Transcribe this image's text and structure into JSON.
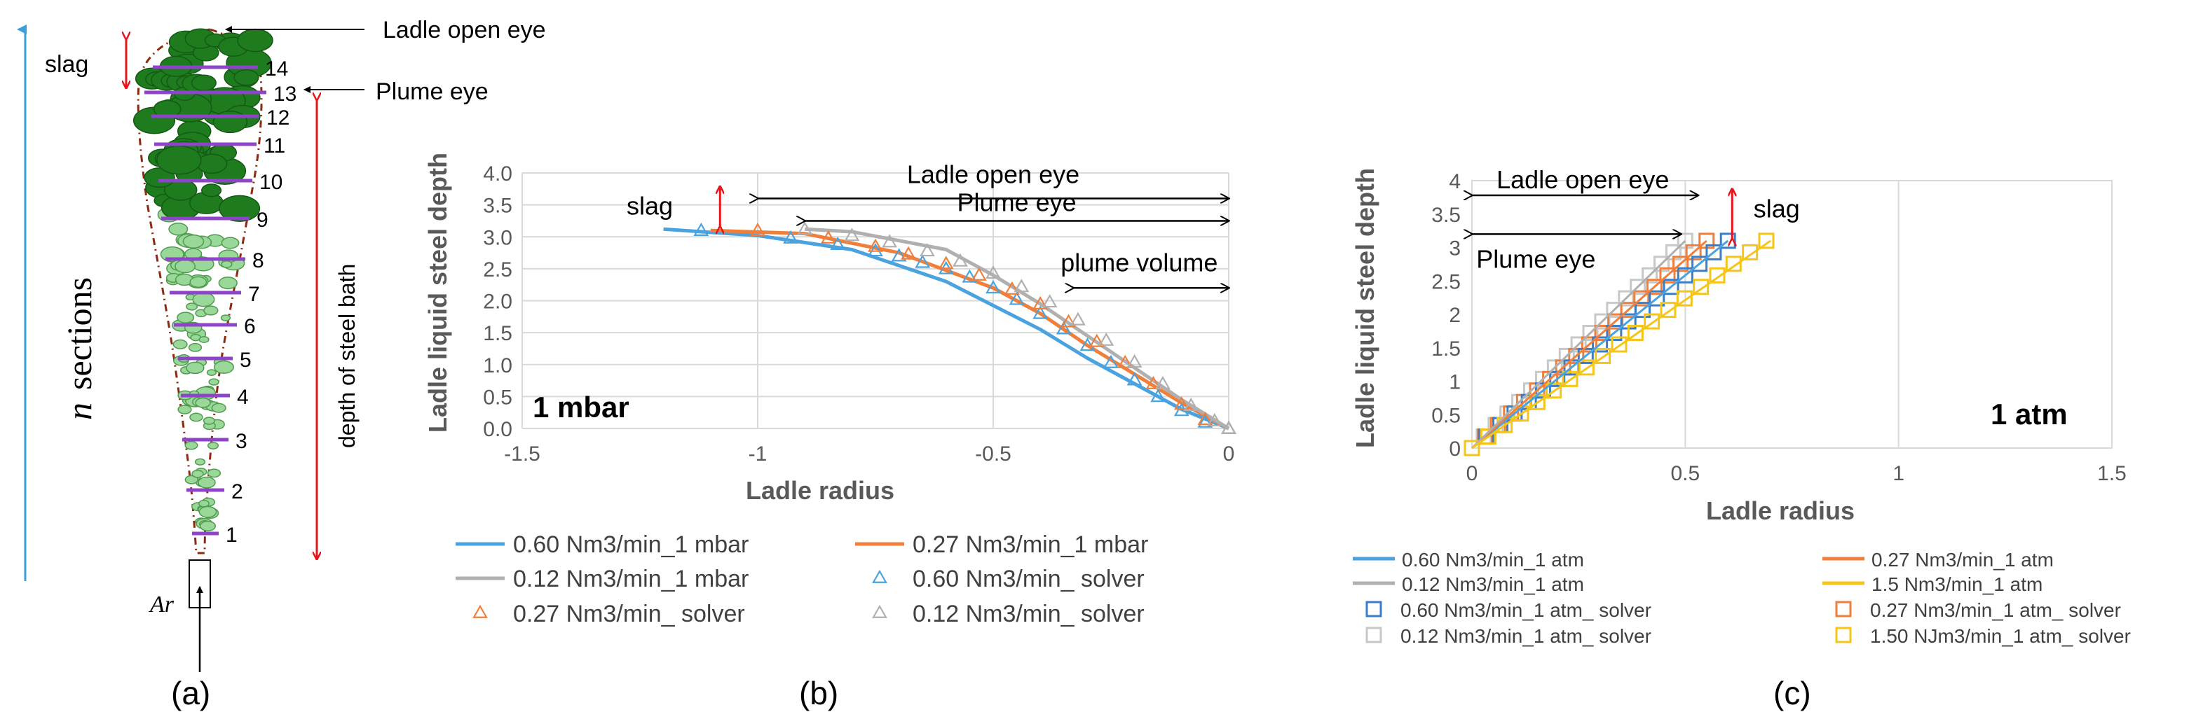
{
  "panel_a": {
    "label": "(a)",
    "title_open_eye": "Ladle open eye",
    "title_plume_eye": "Plume eye",
    "slag": "slag",
    "n_symbol": "n",
    "sections": "sections",
    "depth": "depth of steel bath",
    "ar": "Ar",
    "section_numbers": [
      "1",
      "2",
      "3",
      "4",
      "5",
      "6",
      "7",
      "8",
      "9",
      "10",
      "11",
      "12",
      "13",
      "14"
    ]
  },
  "chart_data": [
    {
      "type": "line",
      "panel_label": "(b)",
      "condition": "1 mbar",
      "xlabel": "Ladle radius",
      "ylabel": "Ladle liquid steel depth",
      "xlim": [
        -1.5,
        0
      ],
      "ylim": [
        0,
        4.0
      ],
      "x_ticks": [
        "-1.5",
        "-1",
        "-0.5",
        "0"
      ],
      "y_ticks": [
        "0.0",
        "0.5",
        "1.0",
        "1.5",
        "2.0",
        "2.5",
        "3.0",
        "3.5",
        "4.0"
      ],
      "annotations": {
        "open_eye": "Ladle open eye",
        "plume_eye": "Plume eye",
        "plume_volume": "plume volume",
        "slag": "slag"
      },
      "series": [
        {
          "name": "0.60 Nm3/min_1 mbar",
          "style": "line",
          "color": "#4aa3df",
          "x": [
            -1.2,
            -1.0,
            -0.8,
            -0.6,
            -0.4,
            -0.3,
            -0.2,
            -0.1,
            0
          ],
          "y": [
            3.12,
            3.02,
            2.8,
            2.3,
            1.55,
            1.1,
            0.7,
            0.3,
            0
          ]
        },
        {
          "name": "0.27 Nm3/min_1 mbar",
          "style": "line",
          "color": "#f07f3c",
          "x": [
            -1.1,
            -0.9,
            -0.7,
            -0.5,
            -0.4,
            -0.3,
            -0.2,
            -0.1,
            0
          ],
          "y": [
            3.1,
            3.05,
            2.75,
            2.2,
            1.8,
            1.3,
            0.85,
            0.4,
            0
          ]
        },
        {
          "name": "0.12 Nm3/min_1 mbar",
          "style": "line",
          "color": "#b0b0b0",
          "x": [
            -0.9,
            -0.8,
            -0.6,
            -0.5,
            -0.4,
            -0.3,
            -0.2,
            -0.1,
            0
          ],
          "y": [
            3.12,
            3.08,
            2.8,
            2.4,
            1.95,
            1.45,
            0.95,
            0.45,
            0
          ]
        },
        {
          "name": "0.60 Nm3/min_  solver",
          "style": "triangle",
          "color": "#4aa3df",
          "x": [
            -1.12,
            -0.93,
            -0.83,
            -0.75,
            -0.7,
            -0.65,
            -0.6,
            -0.55,
            -0.5,
            -0.45,
            -0.4,
            -0.35,
            -0.3,
            -0.25,
            -0.2,
            -0.15,
            -0.1,
            -0.05,
            0
          ],
          "y": [
            3.1,
            2.98,
            2.88,
            2.78,
            2.7,
            2.6,
            2.5,
            2.37,
            2.2,
            2.02,
            1.8,
            1.56,
            1.3,
            1.03,
            0.76,
            0.5,
            0.28,
            0.1,
            0
          ]
        },
        {
          "name": "0.27 Nm3/min_  solver",
          "style": "triangle",
          "color": "#f07f3c",
          "x": [
            -1.0,
            -0.85,
            -0.75,
            -0.68,
            -0.6,
            -0.53,
            -0.46,
            -0.4,
            -0.34,
            -0.28,
            -0.22,
            -0.16,
            -0.1,
            -0.05,
            0
          ],
          "y": [
            3.1,
            2.98,
            2.85,
            2.73,
            2.58,
            2.4,
            2.18,
            1.95,
            1.67,
            1.36,
            1.03,
            0.7,
            0.38,
            0.14,
            0
          ]
        },
        {
          "name": "0.12 Nm3/min_  solver",
          "style": "triangle",
          "color": "#b0b0b0",
          "x": [
            -0.9,
            -0.8,
            -0.72,
            -0.64,
            -0.57,
            -0.5,
            -0.44,
            -0.38,
            -0.32,
            -0.26,
            -0.2,
            -0.14,
            -0.08,
            -0.03,
            0
          ],
          "y": [
            3.12,
            3.02,
            2.92,
            2.78,
            2.62,
            2.43,
            2.22,
            1.98,
            1.7,
            1.38,
            1.04,
            0.7,
            0.36,
            0.12,
            0
          ]
        }
      ]
    },
    {
      "type": "line",
      "panel_label": "(c)",
      "condition": "1 atm",
      "xlabel": "Ladle radius",
      "ylabel": "Ladle liquid steel depth",
      "xlim": [
        0,
        1.5
      ],
      "ylim": [
        0,
        4
      ],
      "x_ticks": [
        "0",
        "0.5",
        "1",
        "1.5"
      ],
      "y_ticks": [
        "0",
        "0.5",
        "1",
        "1.5",
        "2",
        "2.5",
        "3",
        "3.5",
        "4"
      ],
      "annotations": {
        "open_eye": "Ladle open eye",
        "plume_eye": "Plume eye",
        "slag": "slag"
      },
      "series": [
        {
          "name": "0.60 Nm3/min_1 atm",
          "style": "line",
          "color": "#4aa3df",
          "x": [
            0,
            0.6
          ],
          "y": [
            0,
            3.1
          ]
        },
        {
          "name": "0.27 Nm3/min_1 atm",
          "style": "line",
          "color": "#f07f3c",
          "x": [
            0,
            0.55
          ],
          "y": [
            0,
            3.1
          ]
        },
        {
          "name": "0.12 Nm3/min_1 atm",
          "style": "line",
          "color": "#b0b0b0",
          "x": [
            0,
            0.5
          ],
          "y": [
            0,
            3.1
          ]
        },
        {
          "name": "1.5 Nm3/min_1 atm",
          "style": "line",
          "color": "#f5c518",
          "x": [
            0,
            0.7
          ],
          "y": [
            0,
            3.1
          ]
        },
        {
          "name": "0.60 Nm3/min_1 atm_  solver",
          "style": "square",
          "color": "#3a7ec9",
          "x": [
            0,
            0.6
          ],
          "y": [
            0,
            3.1
          ],
          "n": 19
        },
        {
          "name": "0.27 Nm3/min_1 atm_  solver",
          "style": "square",
          "color": "#f07f3c",
          "x": [
            0,
            0.55
          ],
          "y": [
            0,
            3.1
          ],
          "n": 19
        },
        {
          "name": "0.12 Nm3/min_1 atm_  solver",
          "style": "square",
          "color": "#c8c8c8",
          "x": [
            0,
            0.5
          ],
          "y": [
            0,
            3.1
          ],
          "n": 19
        },
        {
          "name": "1.50 NJm3/min_1 atm_  solver",
          "style": "square",
          "color": "#f5c518",
          "x": [
            0,
            0.69
          ],
          "y": [
            0,
            3.1
          ],
          "n": 19
        }
      ]
    }
  ]
}
